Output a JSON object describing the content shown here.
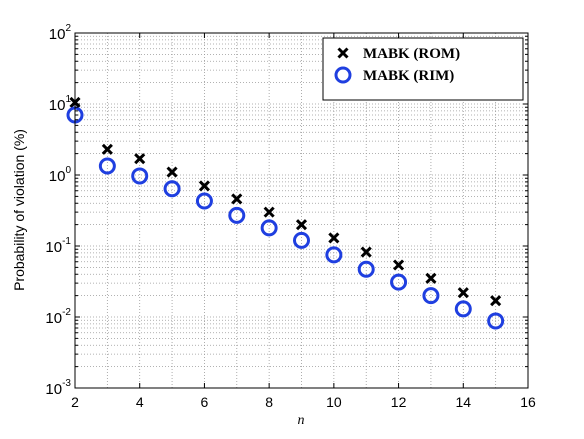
{
  "chart_data": {
    "type": "scatter",
    "x_label": "n",
    "y_label": "Probability of violation (%)",
    "x": [
      2,
      3,
      4,
      5,
      6,
      7,
      8,
      9,
      10,
      11,
      12,
      13,
      14,
      15
    ],
    "series": [
      {
        "name": "MABK (ROM)",
        "color": "#000000",
        "marker": "x",
        "values": [
          10.5,
          2.3,
          1.7,
          1.1,
          0.7,
          0.46,
          0.3,
          0.2,
          0.13,
          0.082,
          0.054,
          0.035,
          0.022,
          0.017
        ]
      },
      {
        "name": "MABK (RIM)",
        "color": "#1f3fe0",
        "marker": "o",
        "values": [
          7.0,
          1.34,
          0.97,
          0.64,
          0.43,
          0.27,
          0.18,
          0.12,
          0.075,
          0.047,
          0.031,
          0.02,
          0.013,
          0.0088
        ]
      }
    ],
    "xlim": [
      2,
      16
    ],
    "xticks": [
      2,
      4,
      6,
      8,
      10,
      12,
      14,
      16
    ],
    "ylim": [
      0.001,
      100
    ],
    "y_log": true,
    "yticks": [
      {
        "value": 0.001,
        "label": "10",
        "exponent": "-3"
      },
      {
        "value": 0.01,
        "label": "10",
        "exponent": "-2"
      },
      {
        "value": 0.1,
        "label": "10",
        "exponent": "-1"
      },
      {
        "value": 1,
        "label": "10",
        "exponent": "0"
      },
      {
        "value": 10,
        "label": "10",
        "exponent": "1"
      },
      {
        "value": 100,
        "label": "10",
        "exponent": "2"
      }
    ],
    "grid": true,
    "legend": "upper right"
  }
}
